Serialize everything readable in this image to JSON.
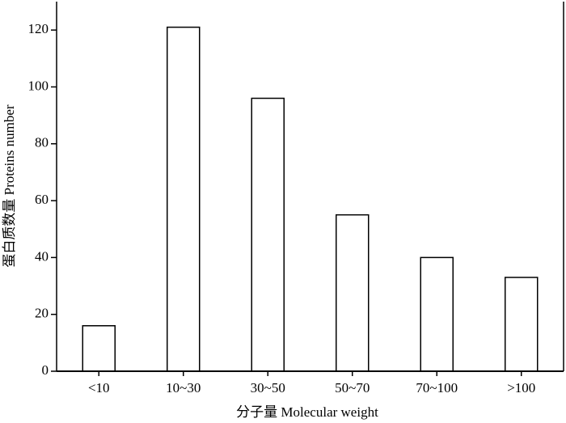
{
  "chart_data": {
    "type": "bar",
    "x_label": "分子量  Molecular weight",
    "y_label": "蛋白质数量  Proteins number",
    "categories": [
      "<10",
      "10~30",
      "30~50",
      "50~70",
      "70~100",
      ">100"
    ],
    "values": [
      16,
      121,
      96,
      55,
      40,
      33
    ],
    "color": "#ffffff",
    "ylim": [
      0,
      130
    ],
    "yticks": [
      0,
      20,
      40,
      60,
      80,
      100,
      120
    ],
    "grid": false
  }
}
